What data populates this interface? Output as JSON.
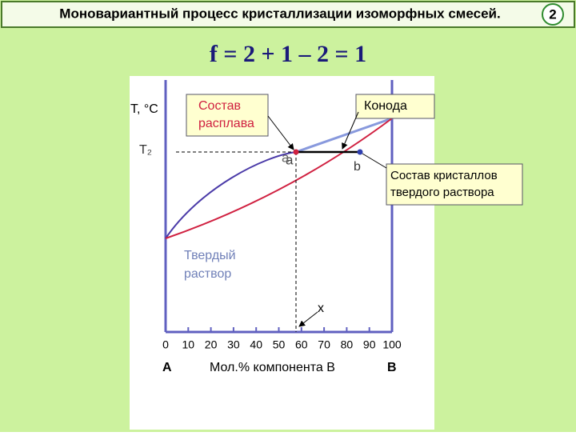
{
  "header": {
    "title": "Моновариантный процесс кристаллизации изоморфных смесей.",
    "slide_number": "2"
  },
  "formula": "f = 2 + 1 – 2 = 1",
  "diagram": {
    "y_axis_label": "T, °C",
    "temperature_label": "T₂",
    "point_a": "a",
    "point_b": "b",
    "point_x": "x",
    "region_label": [
      "Твердый",
      "раствор"
    ],
    "callouts": {
      "melt": [
        "Состав",
        "расплава"
      ],
      "tie_line": [
        "Конода"
      ],
      "crystals": [
        "Состав кристаллов",
        "твердого раствора"
      ]
    },
    "x_tick_labels": [
      "0",
      "10",
      "20",
      "30",
      "40",
      "50",
      "60",
      "70",
      "80",
      "90",
      "100"
    ],
    "left_component": "A",
    "x_axis_label": "Мол.% компонента B",
    "right_component": "B"
  }
}
